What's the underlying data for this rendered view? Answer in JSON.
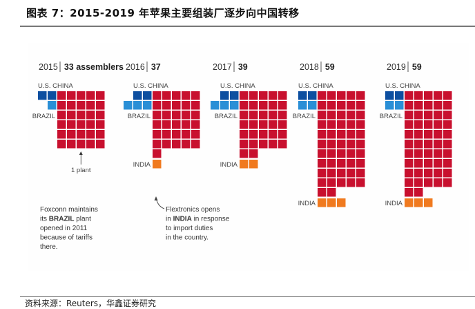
{
  "header": {
    "title": "图表 7：2015-2019 年苹果主要组装厂逐步向中国转移"
  },
  "footer": {
    "source": "资料来源：Reuters，华鑫证券研究"
  },
  "chart_data": {
    "type": "waffle",
    "title": "Apple assemblers by country, 2015-2019",
    "unit_label": "assemblers",
    "colors": {
      "U.S.": "#0d4fa0",
      "BRAZIL": "#2a8fd6",
      "CHINA": "#c8102e",
      "INDIA": "#f07a1f"
    },
    "panels": [
      {
        "year": "2015",
        "total_label": "33 assemblers",
        "total": 33,
        "counts": {
          "U.S.": 2,
          "BRAZIL": 1,
          "CHINA": 30,
          "INDIA": 0
        }
      },
      {
        "year": "2016",
        "total_label": "37",
        "total": 37,
        "counts": {
          "U.S.": 2,
          "BRAZIL": 3,
          "CHINA": 31,
          "INDIA": 1
        }
      },
      {
        "year": "2017",
        "total_label": "39",
        "total": 39,
        "counts": {
          "U.S.": 2,
          "BRAZIL": 3,
          "CHINA": 32,
          "INDIA": 2
        }
      },
      {
        "year": "2018",
        "total_label": "59",
        "total": 59,
        "counts": {
          "U.S.": 2,
          "BRAZIL": 2,
          "CHINA": 52,
          "INDIA": 3
        }
      },
      {
        "year": "2019",
        "total_label": "59",
        "total": 59,
        "counts": {
          "U.S.": 2,
          "BRAZIL": 2,
          "CHINA": 52,
          "INDIA": 3
        }
      }
    ],
    "category_labels": {
      "us_china": "U.S.  CHINA",
      "brazil": "BRAZIL",
      "india": "INDIA"
    },
    "legend_key": "1 plant",
    "annotations": [
      {
        "target": "2015 BRAZIL",
        "lines": [
          [
            {
              "t": "Foxconn maintains",
              "b": false
            }
          ],
          [
            {
              "t": "its ",
              "b": false
            },
            {
              "t": "BRAZIL",
              "b": true
            },
            {
              "t": " plant",
              "b": false
            }
          ],
          [
            {
              "t": "opened in 2011",
              "b": false
            }
          ],
          [
            {
              "t": "because of tariffs",
              "b": false
            }
          ],
          [
            {
              "t": "there.",
              "b": false
            }
          ]
        ]
      },
      {
        "target": "2016 INDIA",
        "lines": [
          [
            {
              "t": "Flextronics opens",
              "b": false
            }
          ],
          [
            {
              "t": "in ",
              "b": false
            },
            {
              "t": "INDIA",
              "b": true
            },
            {
              "t": " in response",
              "b": false
            }
          ],
          [
            {
              "t": "to import duties",
              "b": false
            }
          ],
          [
            {
              "t": "in the country.",
              "b": false
            }
          ]
        ]
      }
    ]
  }
}
